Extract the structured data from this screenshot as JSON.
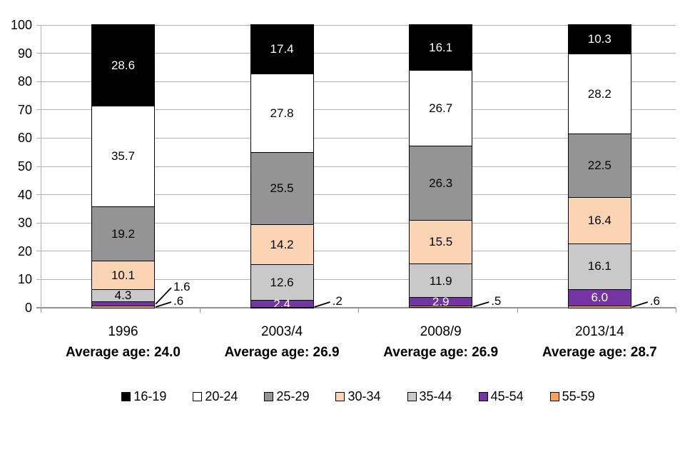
{
  "chart_data": {
    "type": "stacked_bar",
    "title": "",
    "y_axis": {
      "min": 0,
      "max": 100,
      "ticks": [
        "100",
        "90",
        "80",
        "70",
        "60",
        "50",
        "40",
        "30",
        "20",
        "10",
        "0"
      ]
    },
    "grid": true,
    "legend_position": "bottom",
    "colors": {
      "16-19": "#000000",
      "20-24": "#ffffff",
      "25-29": "#949494",
      "30-34": "#fbd5b3",
      "35-44": "#c9c9c9",
      "45-54": "#7434a4",
      "55-59": "#faa157"
    },
    "white_text_groups": [
      "16-19",
      "45-54"
    ],
    "legend": [
      "16-19",
      "20-24",
      "25-29",
      "30-34",
      "35-44",
      "45-54",
      "55-59"
    ],
    "bars": [
      {
        "category": "1996",
        "subtitle": "Average age: 24.0",
        "segments": [
          {
            "group": "16-19",
            "value": 28.6,
            "label": "28.6",
            "placement": "inside"
          },
          {
            "group": "20-24",
            "value": 35.7,
            "label": "35.7",
            "placement": "inside"
          },
          {
            "group": "25-29",
            "value": 19.2,
            "label": "19.2",
            "placement": "inside"
          },
          {
            "group": "30-34",
            "value": 10.1,
            "label": "10.1",
            "placement": "inside"
          },
          {
            "group": "35-44",
            "value": 4.3,
            "label": "4.3",
            "placement": "inside"
          },
          {
            "group": "45-54",
            "value": 1.6,
            "label": "1.6",
            "placement": "callout"
          },
          {
            "group": "55-59",
            "value": 0.6,
            "label": ".6",
            "placement": "callout"
          }
        ]
      },
      {
        "category": "2003/4",
        "subtitle": "Average age: 26.9",
        "segments": [
          {
            "group": "16-19",
            "value": 17.4,
            "label": "17.4",
            "placement": "inside"
          },
          {
            "group": "20-24",
            "value": 27.8,
            "label": "27.8",
            "placement": "inside"
          },
          {
            "group": "25-29",
            "value": 25.5,
            "label": "25.5",
            "placement": "inside"
          },
          {
            "group": "30-34",
            "value": 14.2,
            "label": "14.2",
            "placement": "inside"
          },
          {
            "group": "35-44",
            "value": 12.6,
            "label": "12.6",
            "placement": "inside"
          },
          {
            "group": "45-54",
            "value": 2.4,
            "label": "2.4",
            "placement": "inside"
          },
          {
            "group": "55-59",
            "value": 0.2,
            "label": ".2",
            "placement": "callout"
          }
        ]
      },
      {
        "category": "2008/9",
        "subtitle": "Average age: 26.9",
        "segments": [
          {
            "group": "16-19",
            "value": 16.1,
            "label": "16.1",
            "placement": "inside"
          },
          {
            "group": "20-24",
            "value": 26.7,
            "label": "26.7",
            "placement": "inside"
          },
          {
            "group": "25-29",
            "value": 26.3,
            "label": "26.3",
            "placement": "inside"
          },
          {
            "group": "30-34",
            "value": 15.5,
            "label": "15.5",
            "placement": "inside"
          },
          {
            "group": "35-44",
            "value": 11.9,
            "label": "11.9",
            "placement": "inside"
          },
          {
            "group": "45-54",
            "value": 2.9,
            "label": "2.9",
            "placement": "inside"
          },
          {
            "group": "55-59",
            "value": 0.5,
            "label": ".5",
            "placement": "callout"
          }
        ]
      },
      {
        "category": "2013/14",
        "subtitle": "Average age: 28.7",
        "segments": [
          {
            "group": "16-19",
            "value": 10.3,
            "label": "10.3",
            "placement": "inside"
          },
          {
            "group": "20-24",
            "value": 28.2,
            "label": "28.2",
            "placement": "inside"
          },
          {
            "group": "25-29",
            "value": 22.5,
            "label": "22.5",
            "placement": "inside"
          },
          {
            "group": "30-34",
            "value": 16.4,
            "label": "16.4",
            "placement": "inside"
          },
          {
            "group": "35-44",
            "value": 16.1,
            "label": "16.1",
            "placement": "inside"
          },
          {
            "group": "45-54",
            "value": 6.0,
            "label": "6.0",
            "placement": "inside"
          },
          {
            "group": "55-59",
            "value": 0.6,
            "label": ".6",
            "placement": "callout"
          }
        ]
      }
    ]
  }
}
